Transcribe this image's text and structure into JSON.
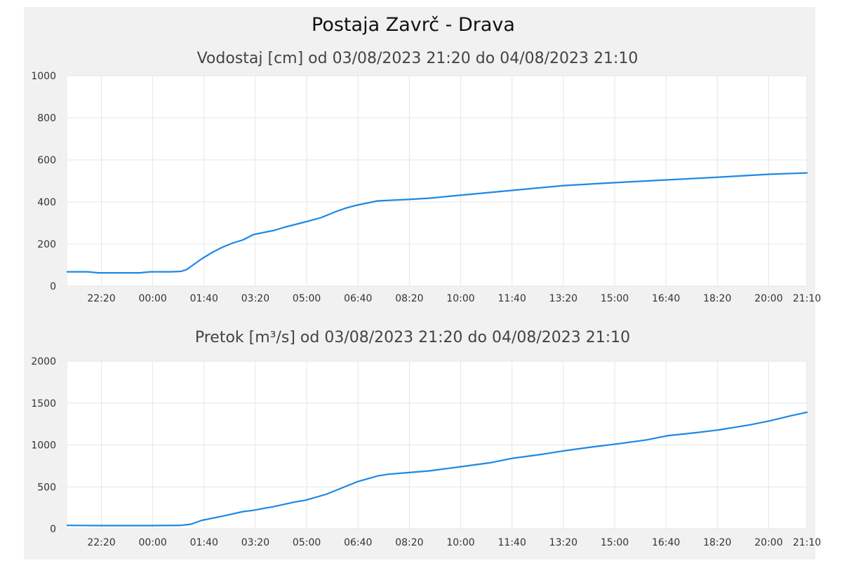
{
  "chart_data": {
    "type": "line",
    "title": "Postaja Zavrč - Drava",
    "x_start": "03/08/2023 21:20",
    "x_end": "04/08/2023 21:10",
    "x_ticks": [
      "22:20",
      "00:00",
      "01:40",
      "03:20",
      "05:00",
      "06:40",
      "08:20",
      "10:00",
      "11:40",
      "13:20",
      "15:00",
      "16:40",
      "18:20",
      "20:00",
      "21:10"
    ],
    "line_color": "#1e88e5",
    "grid": true,
    "legend": "none",
    "charts": [
      {
        "name": "vodostaj",
        "subtitle": "Vodostaj [cm] od 03/08/2023 21:20 do 04/08/2023 21:10",
        "ylim": [
          0,
          1000
        ],
        "y_ticks": [
          "0",
          "200",
          "400",
          "600",
          "800",
          "1000"
        ],
        "points": [
          [
            "21:20",
            68
          ],
          [
            "22:00",
            68
          ],
          [
            "22:20",
            63
          ],
          [
            "23:00",
            63
          ],
          [
            "23:40",
            63
          ],
          [
            "00:00",
            68
          ],
          [
            "00:40",
            68
          ],
          [
            "01:00",
            70
          ],
          [
            "01:10",
            78
          ],
          [
            "01:20",
            95
          ],
          [
            "01:40",
            130
          ],
          [
            "02:00",
            160
          ],
          [
            "02:20",
            185
          ],
          [
            "02:40",
            205
          ],
          [
            "03:00",
            220
          ],
          [
            "03:20",
            245
          ],
          [
            "04:00",
            265
          ],
          [
            "04:20",
            280
          ],
          [
            "05:00",
            305
          ],
          [
            "05:30",
            325
          ],
          [
            "06:00",
            355
          ],
          [
            "06:20",
            372
          ],
          [
            "06:40",
            385
          ],
          [
            "07:00",
            395
          ],
          [
            "07:20",
            405
          ],
          [
            "08:20",
            412
          ],
          [
            "09:00",
            418
          ],
          [
            "10:00",
            432
          ],
          [
            "11:40",
            455
          ],
          [
            "13:20",
            478
          ],
          [
            "15:00",
            492
          ],
          [
            "16:40",
            505
          ],
          [
            "18:20",
            518
          ],
          [
            "20:00",
            532
          ],
          [
            "21:10",
            538
          ]
        ]
      },
      {
        "name": "pretok",
        "subtitle": "Pretok [m³/s] od 03/08/2023 21:20 do 04/08/2023 21:10",
        "ylim": [
          0,
          2000
        ],
        "y_ticks": [
          "0",
          "500",
          "1000",
          "1500",
          "2000"
        ],
        "points": [
          [
            "21:20",
            40
          ],
          [
            "22:20",
            38
          ],
          [
            "00:00",
            38
          ],
          [
            "01:00",
            40
          ],
          [
            "01:20",
            55
          ],
          [
            "01:40",
            100
          ],
          [
            "02:20",
            150
          ],
          [
            "03:00",
            205
          ],
          [
            "03:20",
            220
          ],
          [
            "04:00",
            265
          ],
          [
            "04:40",
            320
          ],
          [
            "05:00",
            340
          ],
          [
            "05:40",
            410
          ],
          [
            "06:20",
            510
          ],
          [
            "06:40",
            560
          ],
          [
            "07:20",
            630
          ],
          [
            "07:40",
            650
          ],
          [
            "08:20",
            670
          ],
          [
            "09:00",
            690
          ],
          [
            "10:00",
            740
          ],
          [
            "11:00",
            790
          ],
          [
            "11:40",
            840
          ],
          [
            "12:40",
            890
          ],
          [
            "13:20",
            930
          ],
          [
            "14:20",
            980
          ],
          [
            "15:00",
            1010
          ],
          [
            "16:00",
            1060
          ],
          [
            "16:40",
            1110
          ],
          [
            "17:40",
            1150
          ],
          [
            "18:20",
            1180
          ],
          [
            "19:20",
            1240
          ],
          [
            "20:00",
            1290
          ],
          [
            "20:40",
            1350
          ],
          [
            "21:10",
            1390
          ]
        ]
      }
    ]
  }
}
